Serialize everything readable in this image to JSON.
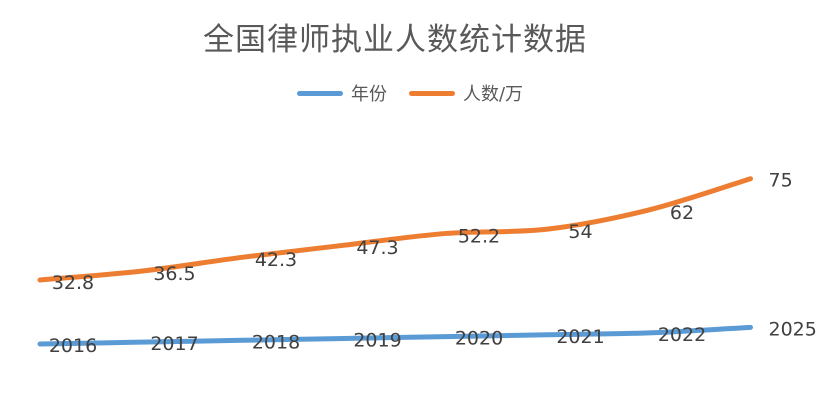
{
  "chart_data": {
    "type": "line",
    "title": "全国律师执业人数统计数据",
    "x": [
      "2016",
      "2017",
      "2018",
      "2019",
      "2020",
      "2021",
      "2022",
      "2025"
    ],
    "series": [
      {
        "name": "年份",
        "color": "#5B9BD5",
        "values": [
          2016,
          2017,
          2018,
          2019,
          2020,
          2021,
          2022,
          2025
        ],
        "labels": [
          "2016",
          "2017",
          "2018",
          "2019",
          "2020",
          "2021",
          "2022",
          "2025"
        ]
      },
      {
        "name": "人数/万",
        "color": "#ED7D31",
        "values": [
          32.8,
          36.5,
          42.3,
          47.3,
          52.2,
          54,
          62,
          75
        ],
        "labels": [
          "32.8",
          "36.5",
          "42.3",
          "47.3",
          "52.2",
          "54",
          "62",
          "75"
        ]
      }
    ],
    "legend": "top",
    "grid": false
  }
}
